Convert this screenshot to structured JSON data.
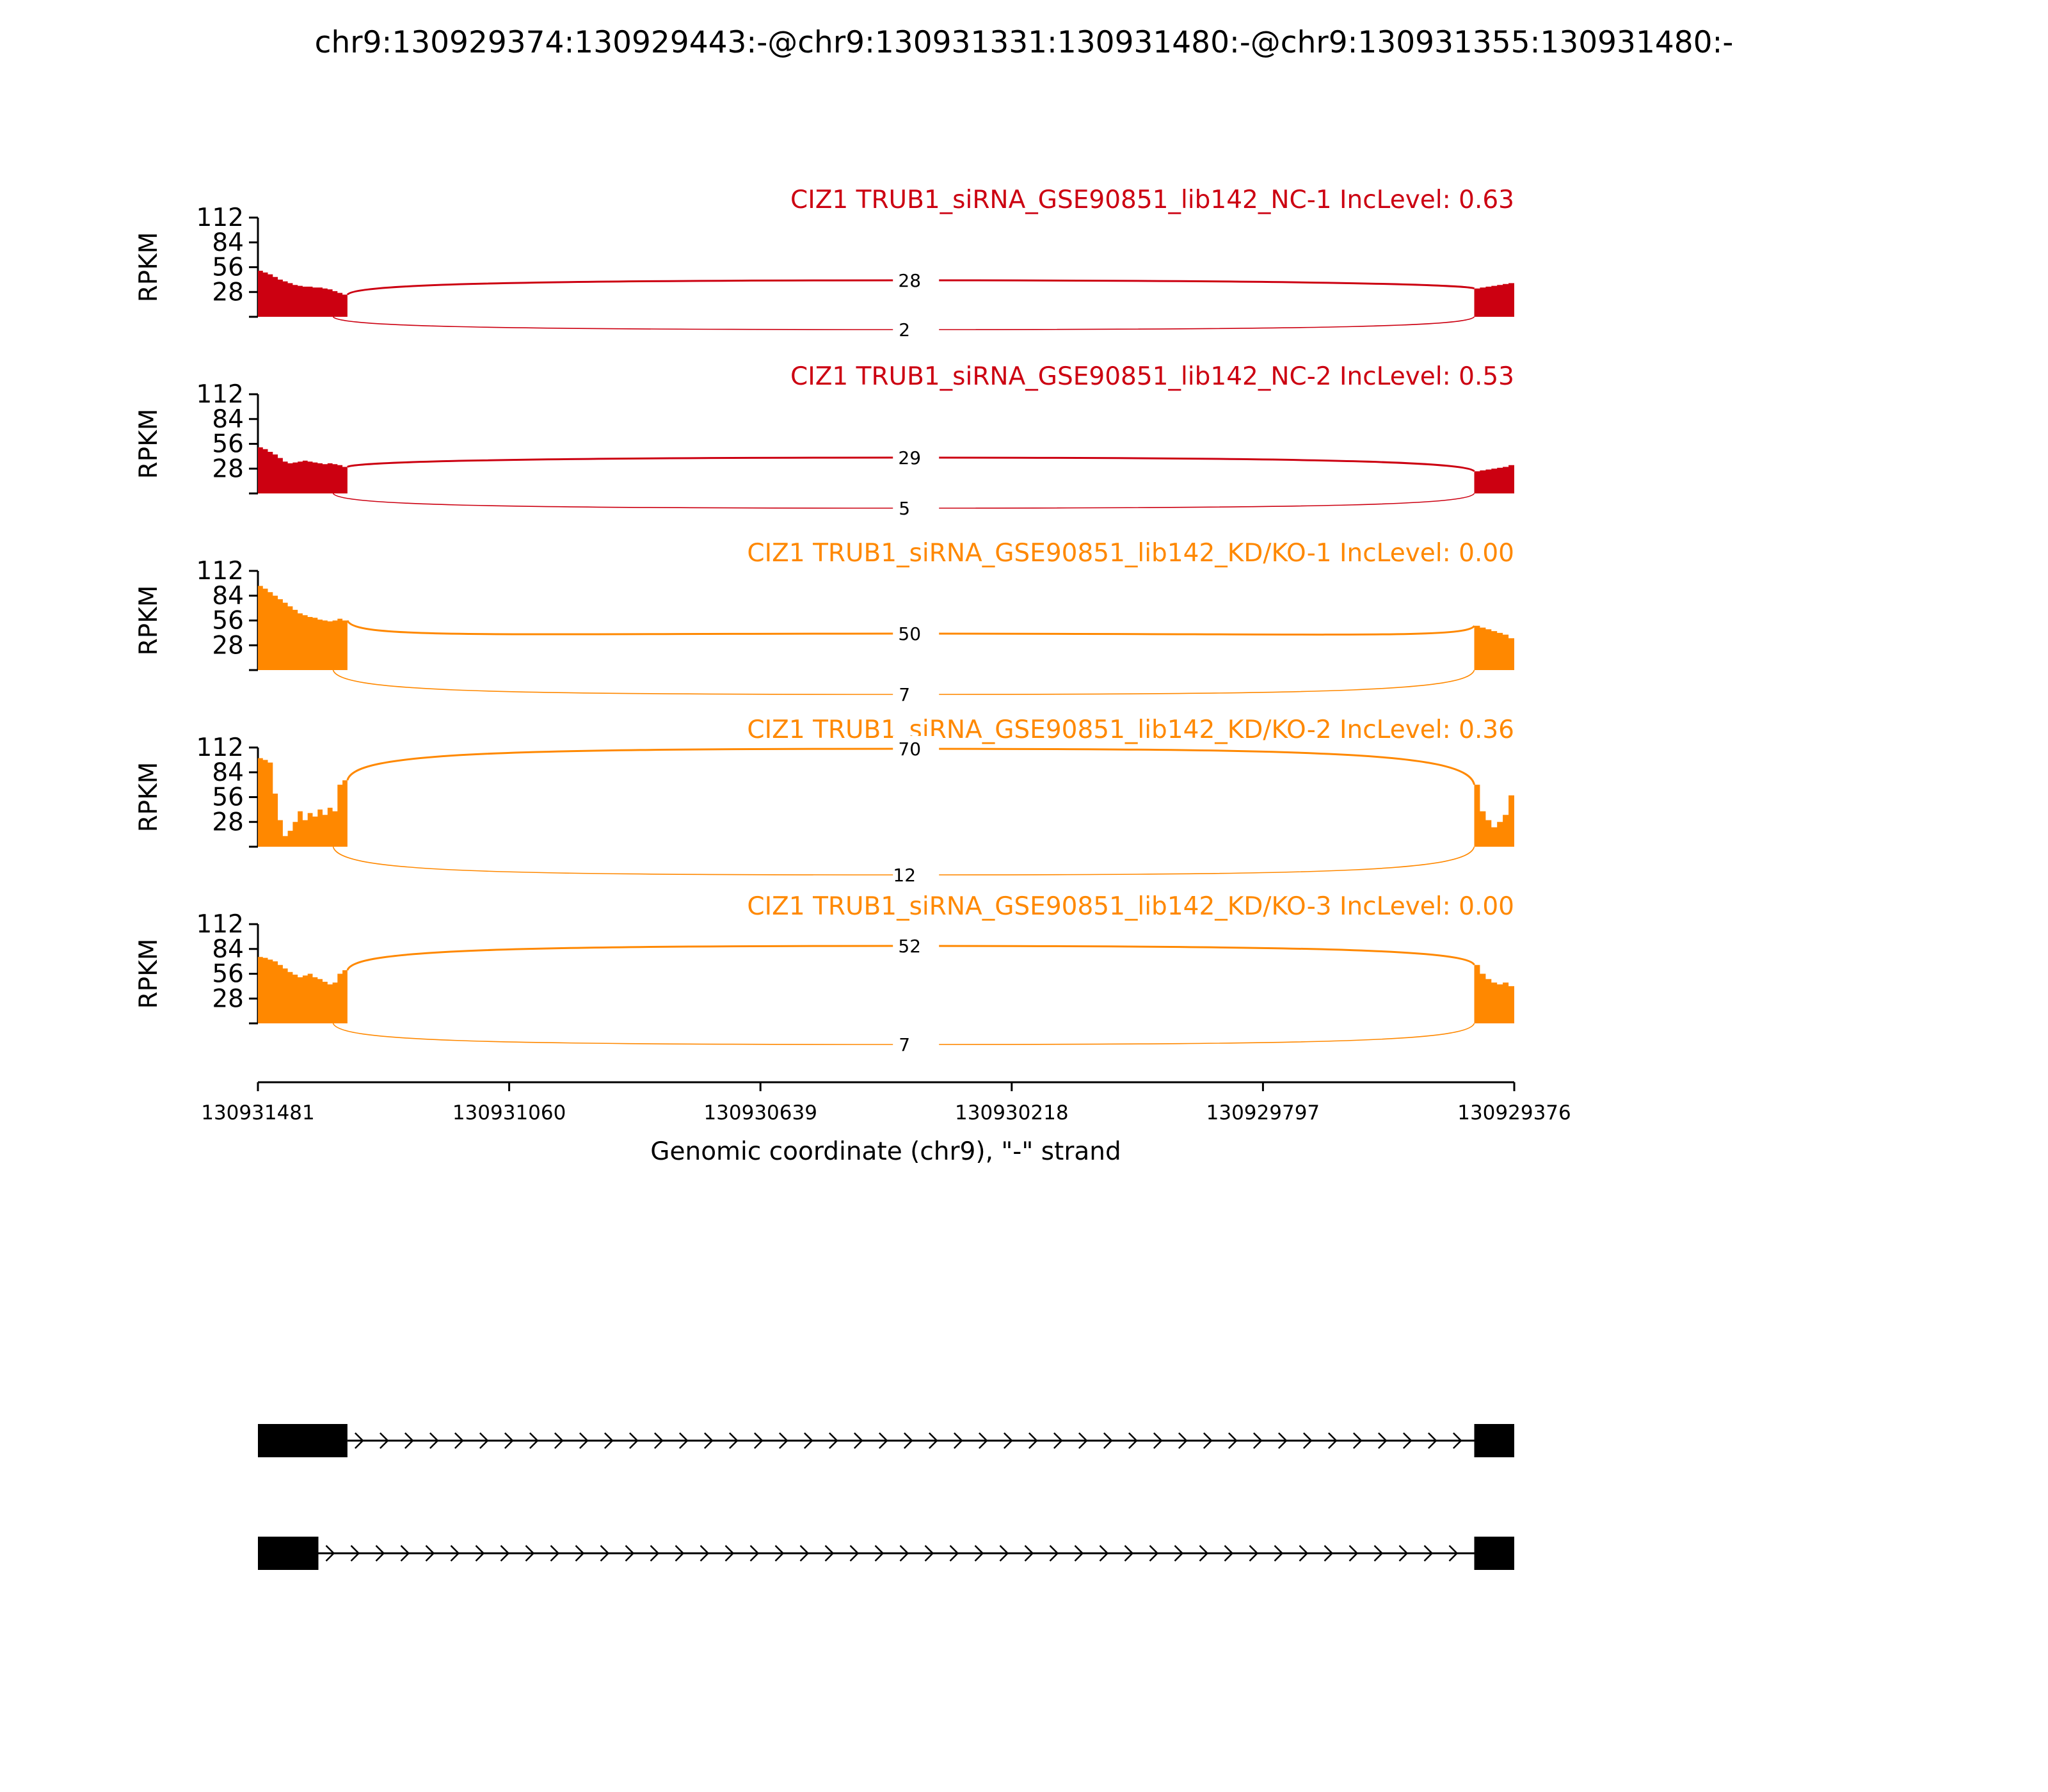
{
  "chart_data": {
    "type": "sashimi",
    "title": "chr9:130929374:130929443:-@chr9:130931331:130931480:-@chr9:130931355:130931480:-",
    "xlabel": "Genomic coordinate (chr9), \"-\" strand",
    "ylabel": "RPKM",
    "x_ticks": [
      "130931481",
      "130931060",
      "130930639",
      "130930218",
      "130929797",
      "130929376"
    ],
    "xlim": [
      130931481,
      130929376
    ],
    "y_ticks": [
      "112",
      "84",
      "56",
      "28"
    ],
    "ylim": [
      0,
      112
    ],
    "exons": {
      "exon1_end": 130931331,
      "exon1_alt_end": 130931355,
      "exon2_start": 130929443
    },
    "series": [
      {
        "name": "CIZ1 TRUB1_siRNA_GSE90851_lib142_NC-1 IncLevel: 0.63",
        "color": "#cc0011",
        "junction_top": "28",
        "junction_bottom": "2",
        "coverage_left": [
          52,
          50,
          48,
          45,
          42,
          40,
          38,
          36,
          35,
          34,
          34,
          33,
          33,
          32,
          31,
          29,
          27,
          25
        ],
        "coverage_right": [
          32,
          33,
          34,
          35,
          36,
          37,
          38
        ]
      },
      {
        "name": "CIZ1 TRUB1_siRNA_GSE90851_lib142_NC-2 IncLevel: 0.53",
        "color": "#cc0011",
        "junction_top": "29",
        "junction_bottom": "5",
        "coverage_left": [
          52,
          50,
          47,
          44,
          40,
          36,
          34,
          35,
          36,
          37,
          36,
          35,
          34,
          33,
          34,
          33,
          32,
          30
        ],
        "coverage_right": [
          25,
          26,
          27,
          28,
          29,
          30,
          32
        ]
      },
      {
        "name": "CIZ1 TRUB1_siRNA_GSE90851_lib142_KD/KO-1 IncLevel: 0.00",
        "color": "#ff8800",
        "junction_top": "50",
        "junction_bottom": "7",
        "coverage_left": [
          95,
          92,
          88,
          84,
          80,
          76,
          72,
          68,
          64,
          62,
          60,
          59,
          57,
          56,
          55,
          56,
          58,
          56
        ],
        "coverage_right": [
          50,
          48,
          46,
          44,
          42,
          40,
          36
        ]
      },
      {
        "name": "CIZ1 TRUB1_siRNA_GSE90851_lib142_KD/KO-2 IncLevel: 0.36",
        "color": "#ff8800",
        "junction_top": "70",
        "junction_bottom": "12",
        "coverage_left": [
          100,
          98,
          95,
          60,
          30,
          12,
          18,
          28,
          40,
          30,
          38,
          34,
          42,
          36,
          44,
          40,
          70,
          75
        ],
        "coverage_right": [
          70,
          40,
          30,
          22,
          28,
          36,
          58
        ]
      },
      {
        "name": "CIZ1 TRUB1_siRNA_GSE90851_lib142_KD/KO-3 IncLevel: 0.00",
        "color": "#ff8800",
        "junction_top": "52",
        "junction_bottom": "7",
        "coverage_left": [
          75,
          74,
          72,
          70,
          66,
          62,
          58,
          55,
          52,
          54,
          56,
          52,
          50,
          47,
          44,
          46,
          56,
          60
        ],
        "coverage_right": [
          66,
          56,
          50,
          46,
          44,
          46,
          42
        ]
      }
    ],
    "grid": false,
    "legend": "none"
  }
}
